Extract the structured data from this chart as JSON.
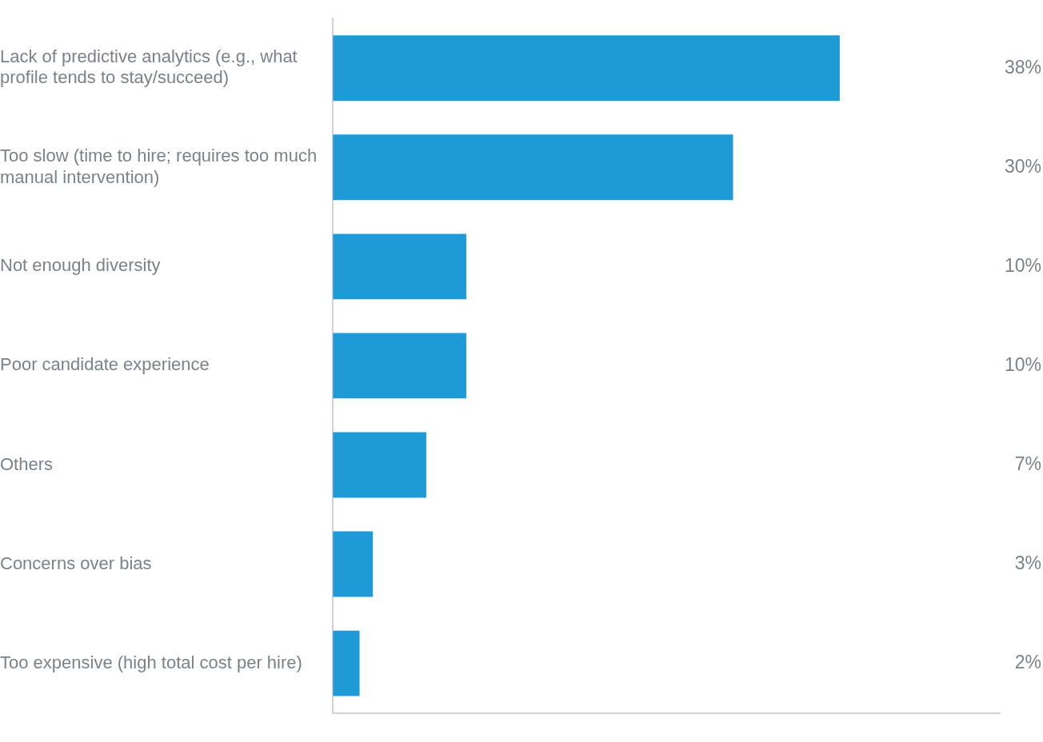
{
  "chart_data": {
    "type": "bar",
    "orientation": "horizontal",
    "categories": [
      "Lack of predictive analytics (e.g., what profile tends to stay/succeed)",
      "Too slow (time to hire; requires too much manual intervention)",
      "Not enough diversity",
      "Poor candidate experience",
      "Others",
      "Concerns over bias",
      "Too expensive (high total cost per hire)"
    ],
    "values": [
      38,
      30,
      10,
      10,
      7,
      3,
      2
    ],
    "color": "#1e9ad6",
    "value_labels": [
      "38%",
      "30%",
      "10%",
      "10%",
      "7%",
      "3%",
      "2%"
    ],
    "tick_labels": "y",
    "grid": false,
    "legend": false
  }
}
